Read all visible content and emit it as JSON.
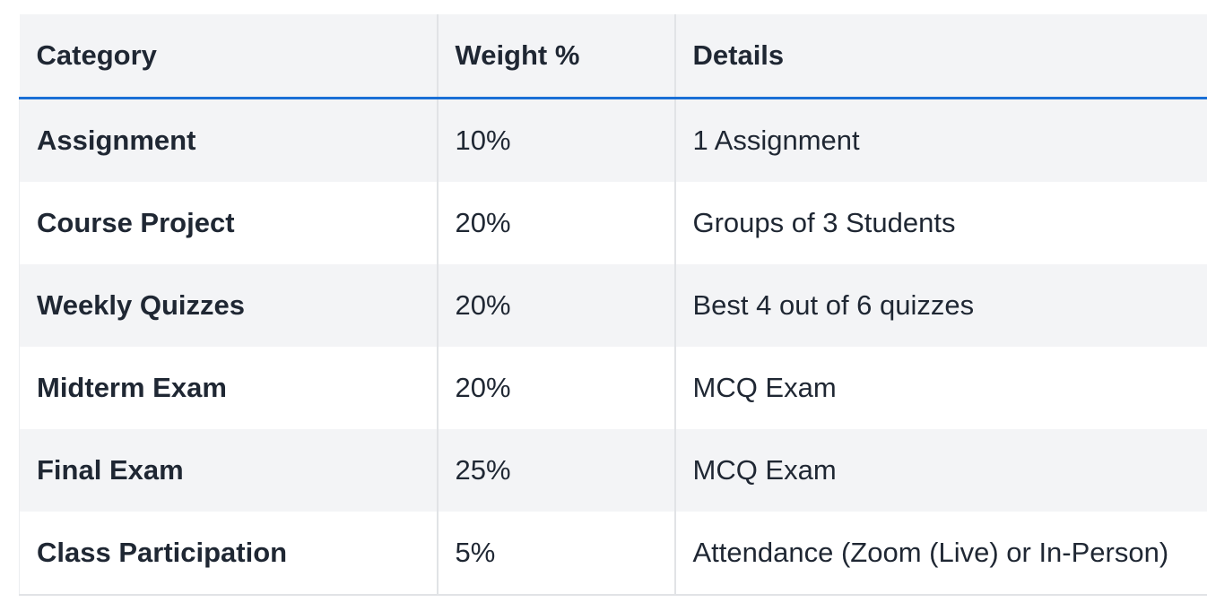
{
  "table": {
    "headers": [
      "Category",
      "Weight %",
      "Details"
    ],
    "rows": [
      {
        "category": "Assignment",
        "weight": "10%",
        "details": "1 Assignment"
      },
      {
        "category": "Course Project",
        "weight": "20%",
        "details": "Groups of 3 Students"
      },
      {
        "category": "Weekly Quizzes",
        "weight": "20%",
        "details": "Best 4 out of 6 quizzes"
      },
      {
        "category": "Midterm Exam",
        "weight": "20%",
        "details": "MCQ Exam"
      },
      {
        "category": "Final Exam",
        "weight": "25%",
        "details": "MCQ Exam"
      },
      {
        "category": "Class Participation",
        "weight": "5%",
        "details": "Attendance (Zoom (Live) or In-Person)"
      }
    ]
  },
  "colors": {
    "header_rule": "#1a6fd6",
    "stripe": "#f3f4f6",
    "text": "#1f2733"
  }
}
